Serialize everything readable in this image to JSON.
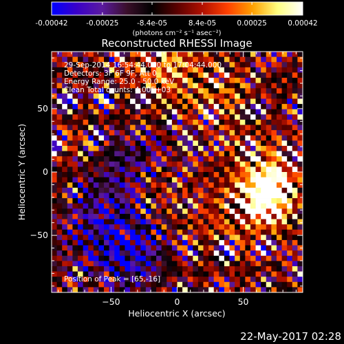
{
  "colorbar": {
    "tick_labels": [
      "-0.00042",
      "-0.00025",
      "-8.4e-05",
      "8.4e-05",
      "0.00025",
      "0.00042"
    ],
    "tick_values": [
      -0.00042,
      -0.00025,
      -8.4e-05,
      8.4e-05,
      0.00025,
      0.00042
    ],
    "range": [
      -0.00042,
      0.00042
    ],
    "unit_label": "(photons cm⁻² s⁻¹ asec⁻²)",
    "colors": [
      "#0000ff",
      "#3a00c8",
      "#5a1aa0",
      "#3a0f2a",
      "#000000",
      "#5a0000",
      "#b01000",
      "#ff4000",
      "#ffa000",
      "#ffff80",
      "#ffffff"
    ]
  },
  "chart_data": {
    "type": "heatmap",
    "title": "Reconstructed RHESSI Image",
    "xlabel": "Heliocentric X (arcsec)",
    "ylabel": "Heliocentric Y (arcsec)",
    "xlim": [
      -95,
      95
    ],
    "ylim": [
      -95,
      95
    ],
    "x_ticks": [
      -50,
      0,
      50
    ],
    "x_tick_labels": [
      "−50",
      "0",
      "50"
    ],
    "y_ticks": [
      -50,
      0,
      50
    ],
    "y_tick_labels": [
      "−50",
      "0",
      "50"
    ],
    "grid": false,
    "peak": [
      65,
      -16
    ],
    "annotations": [
      "29-Sep-2014 16:54:44.000 to 17:04:44.000",
      "Detectors: 3F 6F 9F, Att 0",
      "Energy Range: 25.0 - 50.0 keV",
      "Clean   Total counts: 4.00E+03",
      "Position of Peak = [65,-16]"
    ]
  },
  "footer": {
    "date": "22-May-2017 02:28"
  }
}
